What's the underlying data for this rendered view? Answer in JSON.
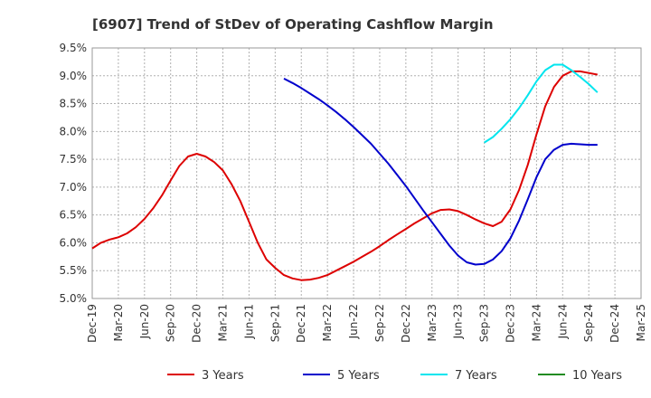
{
  "chart_data": {
    "type": "line",
    "title": "[6907]  Trend of StDev of Operating Cashflow Margin",
    "xlabel": "",
    "ylabel": "",
    "ylim": [
      5.0,
      9.5
    ],
    "y_ticks": [
      "5.0%",
      "5.5%",
      "6.0%",
      "6.5%",
      "7.0%",
      "7.5%",
      "8.0%",
      "8.5%",
      "9.0%",
      "9.5%"
    ],
    "x_ticks": [
      "Dec-19",
      "Mar-20",
      "Jun-20",
      "Sep-20",
      "Dec-20",
      "Mar-21",
      "Jun-21",
      "Sep-21",
      "Dec-21",
      "Mar-22",
      "Jun-22",
      "Sep-22",
      "Dec-22",
      "Mar-23",
      "Jun-23",
      "Sep-23",
      "Dec-23",
      "Mar-24",
      "Jun-24",
      "Sep-24",
      "Dec-24",
      "Mar-25"
    ],
    "grid": true,
    "legend_position": "bottom",
    "series": [
      {
        "name": "3 Years",
        "color": "#dd0000",
        "points": [
          [
            "Dec-19",
            5.9
          ],
          [
            "Jan-20",
            6.0
          ],
          [
            "Feb-20",
            6.06
          ],
          [
            "Mar-20",
            6.1
          ],
          [
            "Apr-20",
            6.17
          ],
          [
            "May-20",
            6.28
          ],
          [
            "Jun-20",
            6.43
          ],
          [
            "Jul-20",
            6.62
          ],
          [
            "Aug-20",
            6.85
          ],
          [
            "Sep-20",
            7.12
          ],
          [
            "Oct-20",
            7.38
          ],
          [
            "Nov-20",
            7.55
          ],
          [
            "Dec-20",
            7.6
          ],
          [
            "Jan-21",
            7.55
          ],
          [
            "Feb-21",
            7.45
          ],
          [
            "Mar-21",
            7.3
          ],
          [
            "Apr-21",
            7.05
          ],
          [
            "May-21",
            6.75
          ],
          [
            "Jun-21",
            6.38
          ],
          [
            "Jul-21",
            6.0
          ],
          [
            "Aug-21",
            5.7
          ],
          [
            "Sep-21",
            5.55
          ],
          [
            "Oct-21",
            5.42
          ],
          [
            "Nov-21",
            5.36
          ],
          [
            "Dec-21",
            5.33
          ],
          [
            "Jan-22",
            5.34
          ],
          [
            "Feb-22",
            5.37
          ],
          [
            "Mar-22",
            5.42
          ],
          [
            "Apr-22",
            5.5
          ],
          [
            "May-22",
            5.58
          ],
          [
            "Jun-22",
            5.66
          ],
          [
            "Jul-22",
            5.75
          ],
          [
            "Aug-22",
            5.84
          ],
          [
            "Sep-22",
            5.94
          ],
          [
            "Oct-22",
            6.05
          ],
          [
            "Nov-22",
            6.15
          ],
          [
            "Dec-22",
            6.25
          ],
          [
            "Jan-23",
            6.35
          ],
          [
            "Feb-23",
            6.44
          ],
          [
            "Mar-23",
            6.53
          ],
          [
            "Apr-23",
            6.59
          ],
          [
            "May-23",
            6.6
          ],
          [
            "Jun-23",
            6.57
          ],
          [
            "Jul-23",
            6.5
          ],
          [
            "Aug-23",
            6.42
          ],
          [
            "Sep-23",
            6.35
          ],
          [
            "Oct-23",
            6.3
          ],
          [
            "Nov-23",
            6.38
          ],
          [
            "Dec-23",
            6.6
          ],
          [
            "Jan-24",
            6.95
          ],
          [
            "Feb-24",
            7.4
          ],
          [
            "Mar-24",
            7.95
          ],
          [
            "Apr-24",
            8.45
          ],
          [
            "May-24",
            8.8
          ],
          [
            "Jun-24",
            9.0
          ],
          [
            "Jul-24",
            9.08
          ],
          [
            "Aug-24",
            9.08
          ],
          [
            "Sep-24",
            9.05
          ],
          [
            "Oct-24",
            9.02
          ]
        ]
      },
      {
        "name": "5 Years",
        "color": "#0000cc",
        "points": [
          [
            "Oct-21",
            8.95
          ],
          [
            "Nov-21",
            8.87
          ],
          [
            "Dec-21",
            8.78
          ],
          [
            "Jan-22",
            8.68
          ],
          [
            "Feb-22",
            8.58
          ],
          [
            "Mar-22",
            8.47
          ],
          [
            "Apr-22",
            8.35
          ],
          [
            "May-22",
            8.22
          ],
          [
            "Jun-22",
            8.08
          ],
          [
            "Jul-22",
            7.93
          ],
          [
            "Aug-22",
            7.78
          ],
          [
            "Sep-22",
            7.6
          ],
          [
            "Oct-22",
            7.42
          ],
          [
            "Nov-22",
            7.22
          ],
          [
            "Dec-22",
            7.02
          ],
          [
            "Jan-23",
            6.8
          ],
          [
            "Feb-23",
            6.58
          ],
          [
            "Mar-23",
            6.37
          ],
          [
            "Apr-23",
            6.16
          ],
          [
            "May-23",
            5.95
          ],
          [
            "Jun-23",
            5.77
          ],
          [
            "Jul-23",
            5.65
          ],
          [
            "Aug-23",
            5.61
          ],
          [
            "Sep-23",
            5.62
          ],
          [
            "Oct-23",
            5.7
          ],
          [
            "Nov-23",
            5.85
          ],
          [
            "Dec-23",
            6.08
          ],
          [
            "Jan-24",
            6.4
          ],
          [
            "Feb-24",
            6.78
          ],
          [
            "Mar-24",
            7.18
          ],
          [
            "Apr-24",
            7.5
          ],
          [
            "May-24",
            7.67
          ],
          [
            "Jun-24",
            7.76
          ],
          [
            "Jul-24",
            7.78
          ],
          [
            "Aug-24",
            7.77
          ],
          [
            "Sep-24",
            7.76
          ],
          [
            "Oct-24",
            7.76
          ]
        ]
      },
      {
        "name": "7 Years",
        "color": "#00e5ee",
        "points": [
          [
            "Sep-23",
            7.8
          ],
          [
            "Oct-23",
            7.9
          ],
          [
            "Nov-23",
            8.05
          ],
          [
            "Dec-23",
            8.22
          ],
          [
            "Jan-24",
            8.42
          ],
          [
            "Feb-24",
            8.65
          ],
          [
            "Mar-24",
            8.9
          ],
          [
            "Apr-24",
            9.1
          ],
          [
            "May-24",
            9.2
          ],
          [
            "Jun-24",
            9.2
          ],
          [
            "Jul-24",
            9.1
          ],
          [
            "Aug-24",
            8.98
          ],
          [
            "Sep-24",
            8.85
          ],
          [
            "Oct-24",
            8.7
          ]
        ]
      },
      {
        "name": "10 Years",
        "color": "#228b22",
        "points": []
      }
    ]
  }
}
